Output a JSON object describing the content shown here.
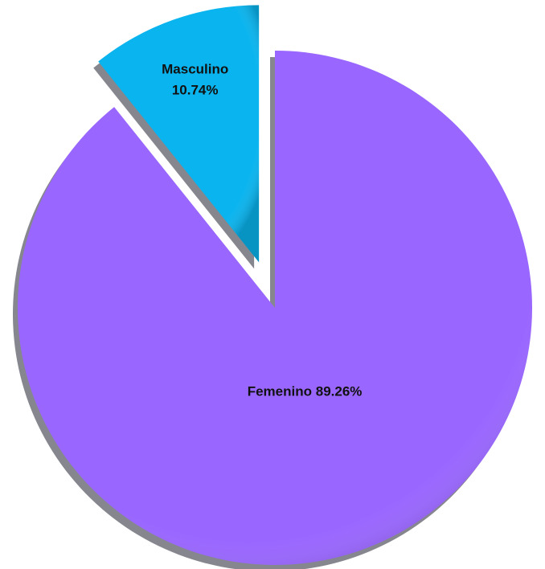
{
  "chart_data": {
    "type": "pie",
    "categories": [
      "Femenino",
      "Masculino"
    ],
    "values": [
      89.26,
      10.74
    ],
    "value_labels": [
      "89.26%",
      "10.74%"
    ],
    "colors": [
      "#9966ff",
      "#0ab4ee"
    ]
  }
}
